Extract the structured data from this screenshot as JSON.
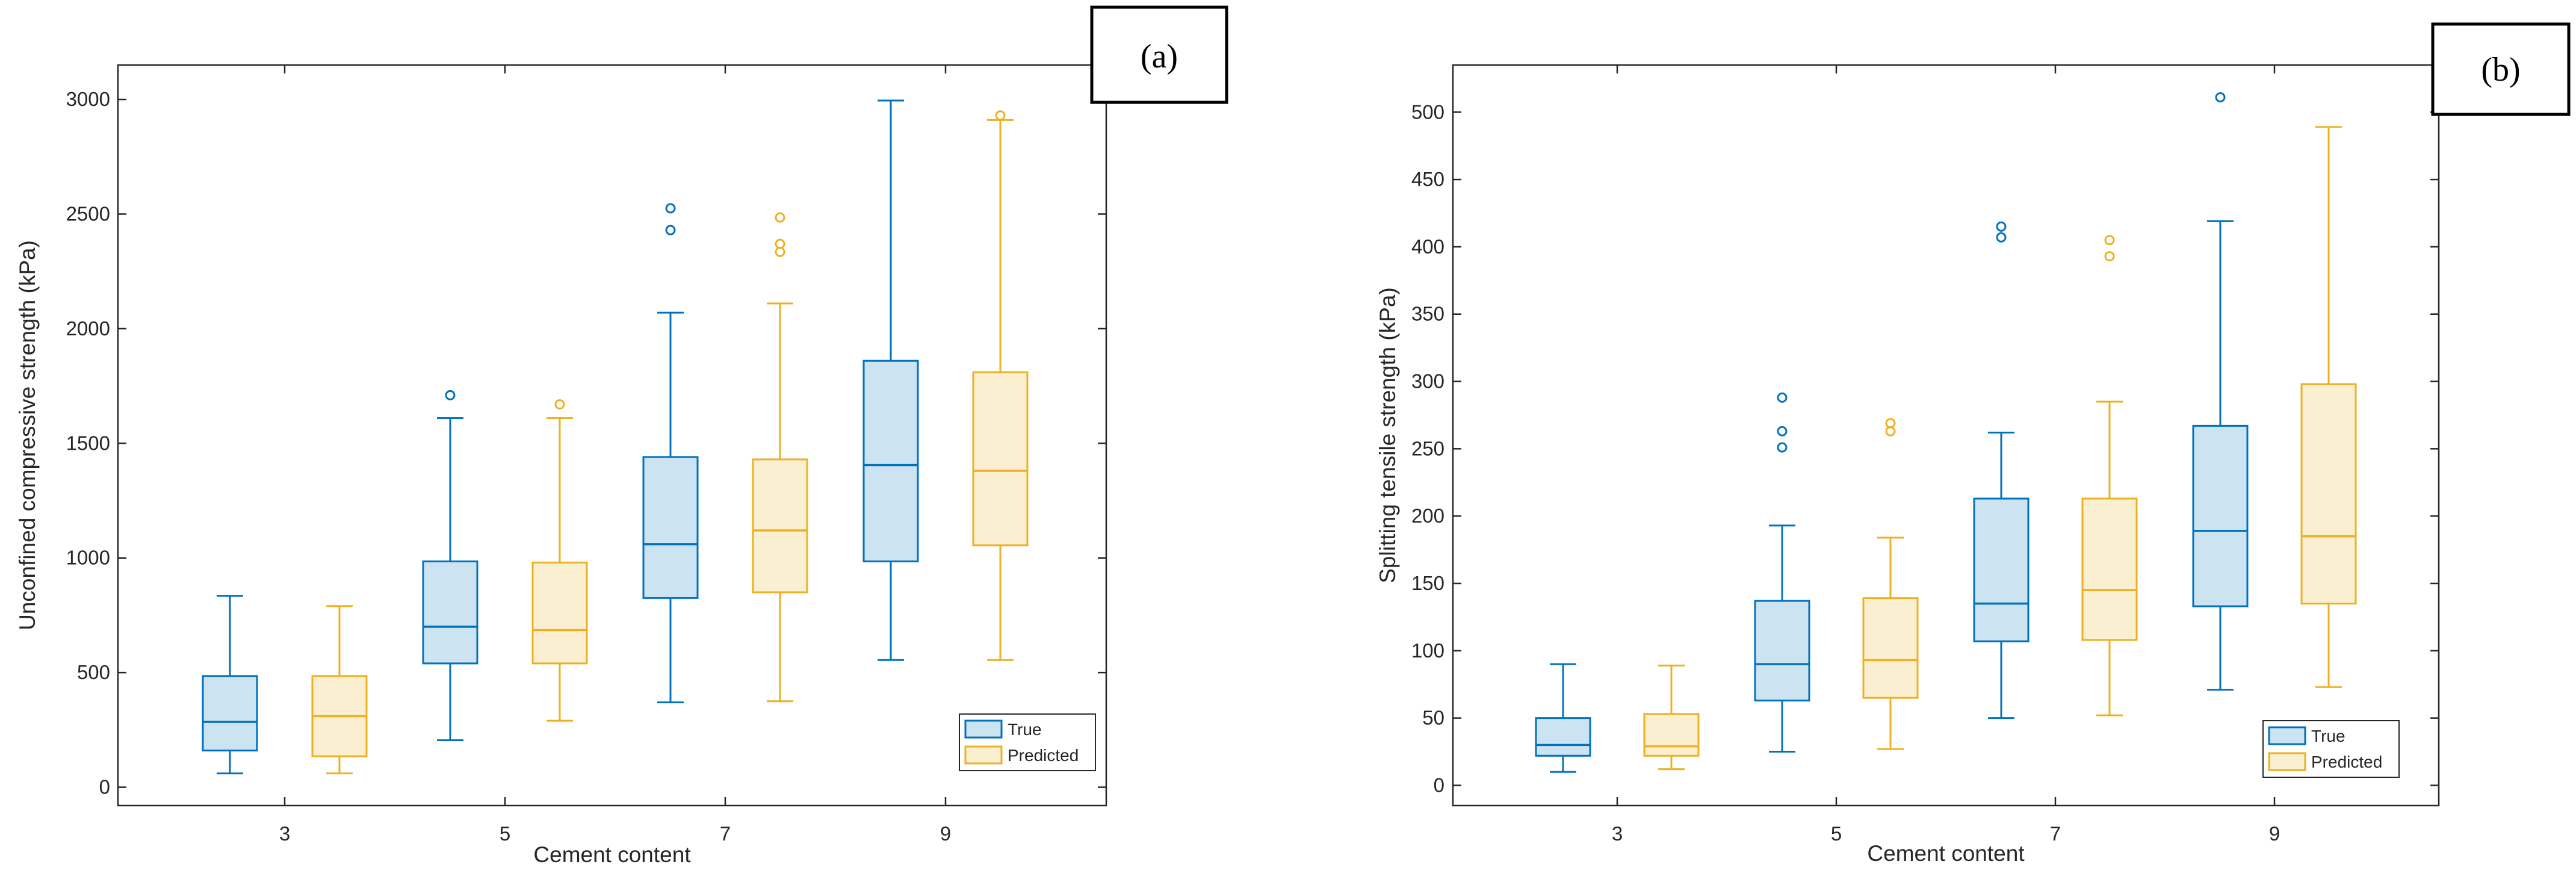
{
  "colors": {
    "true": "#0072BD",
    "true_fill": "#CCE3F1",
    "predicted": "#EDB120",
    "predicted_fill": "#FBEFD2",
    "axis": "#262626"
  },
  "chart_data": [
    {
      "type": "boxplot",
      "panel_label": "(a)",
      "xlabel": "Cement content",
      "ylabel": "Unconfined compressive strength (kPa)",
      "categories": [
        "3",
        "5",
        "7",
        "9"
      ],
      "ylim": [
        -80,
        3150
      ],
      "yticks": [
        0,
        500,
        1000,
        1500,
        2000,
        2500,
        3000
      ],
      "legend": {
        "position": "bottom-right",
        "entries": [
          "True",
          "Predicted"
        ]
      },
      "series": [
        {
          "name": "True",
          "color_key": "true",
          "boxes": [
            {
              "category": "3",
              "min": 60,
              "q1": 160,
              "median": 285,
              "q3": 485,
              "max": 835,
              "outliers": []
            },
            {
              "category": "5",
              "min": 205,
              "q1": 540,
              "median": 700,
              "q3": 985,
              "max": 1610,
              "outliers": [
                1710
              ]
            },
            {
              "category": "7",
              "min": 370,
              "q1": 825,
              "median": 1060,
              "q3": 1440,
              "max": 2070,
              "outliers": [
                2430,
                2525
              ]
            },
            {
              "category": "9",
              "min": 555,
              "q1": 985,
              "median": 1405,
              "q3": 1860,
              "max": 2995,
              "outliers": []
            }
          ]
        },
        {
          "name": "Predicted",
          "color_key": "predicted",
          "boxes": [
            {
              "category": "3",
              "min": 60,
              "q1": 135,
              "median": 310,
              "q3": 485,
              "max": 790,
              "outliers": []
            },
            {
              "category": "5",
              "min": 290,
              "q1": 540,
              "median": 685,
              "q3": 980,
              "max": 1610,
              "outliers": [
                1670
              ]
            },
            {
              "category": "7",
              "min": 375,
              "q1": 850,
              "median": 1120,
              "q3": 1430,
              "max": 2110,
              "outliers": [
                2335,
                2370,
                2485
              ]
            },
            {
              "category": "9",
              "min": 555,
              "q1": 1055,
              "median": 1380,
              "q3": 1810,
              "max": 2910,
              "outliers": [
                2930
              ]
            }
          ]
        }
      ]
    },
    {
      "type": "boxplot",
      "panel_label": "(b)",
      "xlabel": "Cement content",
      "ylabel": "Splitting tensile strength (kPa)",
      "categories": [
        "3",
        "5",
        "7",
        "9"
      ],
      "ylim": [
        -15,
        535
      ],
      "yticks": [
        0,
        50,
        100,
        150,
        200,
        250,
        300,
        350,
        400,
        450,
        500
      ],
      "legend": {
        "position": "bottom-right",
        "entries": [
          "True",
          "Predicted"
        ]
      },
      "series": [
        {
          "name": "True",
          "color_key": "true",
          "boxes": [
            {
              "category": "3",
              "min": 10,
              "q1": 22,
              "median": 30,
              "q3": 50,
              "max": 90,
              "outliers": []
            },
            {
              "category": "5",
              "min": 25,
              "q1": 63,
              "median": 90,
              "q3": 137,
              "max": 193,
              "outliers": [
                251,
                263,
                288
              ]
            },
            {
              "category": "7",
              "min": 50,
              "q1": 107,
              "median": 135,
              "q3": 213,
              "max": 262,
              "outliers": [
                407,
                415
              ]
            },
            {
              "category": "9",
              "min": 71,
              "q1": 133,
              "median": 189,
              "q3": 267,
              "max": 419,
              "outliers": [
                511
              ]
            }
          ]
        },
        {
          "name": "Predicted",
          "color_key": "predicted",
          "boxes": [
            {
              "category": "3",
              "min": 12,
              "q1": 22,
              "median": 29,
              "q3": 53,
              "max": 89,
              "outliers": []
            },
            {
              "category": "5",
              "min": 27,
              "q1": 65,
              "median": 93,
              "q3": 139,
              "max": 184,
              "outliers": [
                263,
                269
              ]
            },
            {
              "category": "7",
              "min": 52,
              "q1": 108,
              "median": 145,
              "q3": 213,
              "max": 285,
              "outliers": [
                393,
                405
              ]
            },
            {
              "category": "9",
              "min": 73,
              "q1": 135,
              "median": 185,
              "q3": 298,
              "max": 489,
              "outliers": []
            }
          ]
        }
      ]
    }
  ]
}
